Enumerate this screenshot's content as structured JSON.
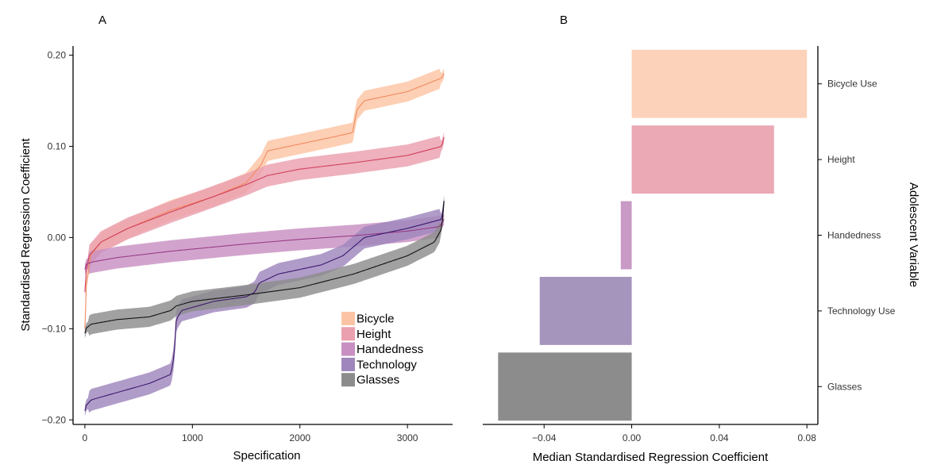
{
  "chart_data": [
    {
      "panel": "A",
      "type": "line",
      "xlabel": "Specification",
      "ylabel": "Standardised Regression Coefficient",
      "xlim": [
        -110,
        3420
      ],
      "ylim": [
        -0.205,
        0.21
      ],
      "xticks": [
        0,
        1000,
        2000,
        3000
      ],
      "yticks": [
        -0.2,
        -0.1,
        0.0,
        0.1,
        0.2
      ],
      "ytick_labels": [
        "−0.20",
        "−0.10",
        "0.00",
        "0.10",
        "0.20"
      ],
      "legend_position": "inside-bottom-right",
      "series": [
        {
          "name": "Bicycle",
          "color": "#f08a60",
          "fill": "#fcc4a4",
          "x": [
            0,
            5,
            50,
            150,
            400,
            800,
            1200,
            1500,
            1640,
            1700,
            1900,
            2300,
            2490,
            2530,
            2600,
            3000,
            3320,
            3340
          ],
          "y": [
            -0.1,
            -0.06,
            -0.02,
            -0.005,
            0.01,
            0.03,
            0.045,
            0.06,
            0.08,
            0.095,
            0.1,
            0.11,
            0.115,
            0.14,
            0.15,
            0.16,
            0.175,
            0.18
          ],
          "band": 0.011
        },
        {
          "name": "Height",
          "color": "#d24060",
          "fill": "#eaa0ae",
          "x": [
            0,
            5,
            40,
            150,
            400,
            800,
            1200,
            1500,
            1700,
            2000,
            2500,
            3000,
            3320,
            3340
          ],
          "y": [
            -0.06,
            -0.04,
            -0.02,
            -0.005,
            0.01,
            0.028,
            0.045,
            0.058,
            0.068,
            0.075,
            0.082,
            0.09,
            0.1,
            0.11
          ],
          "band": 0.012
        },
        {
          "name": "Handedness",
          "color": "#9a3c86",
          "fill": "#c890c2",
          "x": [
            0,
            5,
            60,
            300,
            800,
            1500,
            2000,
            2500,
            3000,
            3300,
            3340
          ],
          "y": [
            -0.035,
            -0.03,
            -0.027,
            -0.022,
            -0.015,
            -0.007,
            -0.002,
            0.002,
            0.007,
            0.012,
            0.02
          ],
          "band": 0.012
        },
        {
          "name": "Technology",
          "color": "#3c1a6e",
          "fill": "#9f86bc",
          "x": [
            0,
            5,
            60,
            300,
            600,
            800,
            830,
            850,
            900,
            1200,
            1500,
            1580,
            1620,
            1800,
            2200,
            2400,
            2500,
            2600,
            3000,
            3320,
            3340
          ],
          "y": [
            -0.19,
            -0.185,
            -0.178,
            -0.17,
            -0.16,
            -0.15,
            -0.13,
            -0.09,
            -0.08,
            -0.07,
            -0.065,
            -0.06,
            -0.05,
            -0.04,
            -0.03,
            -0.02,
            -0.01,
            0.0,
            0.01,
            0.02,
            0.04
          ],
          "band": 0.012
        },
        {
          "name": "Glasses",
          "color": "#111111",
          "fill": "#8c8c8c",
          "x": [
            0,
            5,
            60,
            300,
            600,
            800,
            850,
            1000,
            1500,
            2000,
            2500,
            3000,
            3250,
            3320,
            3340
          ],
          "y": [
            -0.105,
            -0.1,
            -0.095,
            -0.09,
            -0.087,
            -0.08,
            -0.075,
            -0.07,
            -0.063,
            -0.055,
            -0.04,
            -0.02,
            -0.005,
            0.01,
            0.04
          ],
          "band": 0.011
        }
      ]
    },
    {
      "panel": "B",
      "type": "bar",
      "orientation": "horizontal",
      "xlabel": "Median Standardised Regression Coefficient",
      "ylabel": "Adolescent Variable",
      "xlim": [
        -0.068,
        0.085
      ],
      "xticks": [
        -0.04,
        0.0,
        0.04,
        0.08
      ],
      "xtick_labels": [
        "−0.04",
        "0.00",
        "0.04",
        "0.08"
      ],
      "categories": [
        "Bicycle Use",
        "Height",
        "Handedness",
        "Technology Use",
        "Glasses"
      ],
      "values": [
        0.08,
        0.065,
        -0.005,
        -0.042,
        -0.061
      ],
      "colors": [
        "#fdd2ba",
        "#eba8b5",
        "#c89ac5",
        "#a594bc",
        "#8c8c8c"
      ],
      "y_axis_side": "right"
    }
  ]
}
